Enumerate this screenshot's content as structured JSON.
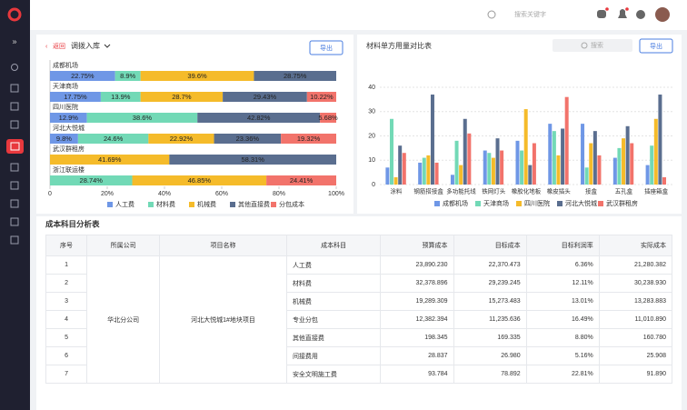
{
  "header": {
    "search_placeholder": "搜索关键字"
  },
  "left_panel": {
    "back": "返回",
    "selector": "调拨入库",
    "export": "导出"
  },
  "right_panel": {
    "title": "材料单方用量对比表",
    "search_placeholder": "搜索",
    "export": "导出"
  },
  "chart_data": [
    {
      "type": "stacked_bar_h",
      "categories": [
        "成都机场",
        "天津商场",
        "四川医院",
        "河北大悦城",
        "武汉群租房",
        "浙江联运楼"
      ],
      "series": [
        {
          "name": "人工费",
          "color": "#6f97e6",
          "values": [
            22.75,
            17.75,
            12.9,
            9.8,
            null,
            null
          ],
          "value_labels": [
            "22.75%",
            "17.75%",
            "12.9%",
            "9.8%",
            null,
            null
          ]
        },
        {
          "name": "材料费",
          "color": "#72d9b6",
          "values": [
            8.9,
            13.9,
            38.6,
            24.6,
            null,
            28.74
          ],
          "value_labels": [
            "8.9%",
            "13.9%",
            "38.6%",
            "24.6%",
            null,
            "28.74%"
          ]
        },
        {
          "name": "机械费",
          "color": "#f5bb2a",
          "values": [
            39.6,
            28.7,
            null,
            22.92,
            41.69,
            46.85
          ],
          "value_labels": [
            "39.6%",
            "28.7%",
            null,
            "22.92%",
            "41.69%",
            "46.85%"
          ]
        },
        {
          "name": "其他直接费",
          "color": "#5a6e8f",
          "values": [
            28.75,
            29.43,
            42.82,
            23.36,
            58.31,
            null
          ],
          "value_labels": [
            "28.75%",
            "29.43%",
            "42.82%",
            "23.36%",
            "58.31%",
            null
          ]
        },
        {
          "name": "分包成本",
          "color": "#f2736b",
          "values": [
            null,
            10.22,
            5.68,
            19.32,
            null,
            24.41
          ],
          "value_labels": [
            null,
            "10.22%",
            "5.68%",
            "19.32%",
            null,
            "24.41%"
          ]
        }
      ],
      "xlim": [
        0,
        100
      ],
      "xticks": [
        {
          "value": 0,
          "label": "0"
        },
        {
          "value": 20,
          "label": "20%"
        },
        {
          "value": 40,
          "label": "40%"
        },
        {
          "value": 60,
          "label": "60%"
        },
        {
          "value": 80,
          "label": "80%"
        },
        {
          "value": 100,
          "label": "100%"
        }
      ],
      "grid": false,
      "legend": "bottom"
    },
    {
      "type": "bar",
      "categories": [
        "涂料",
        "钢筋搭接盒",
        "多功能托线",
        "铁网灯头",
        "橡胶化地板",
        "橡皮插头",
        "接盒",
        "五孔盒",
        "插座箱盒"
      ],
      "series": [
        {
          "name": "成都机场",
          "color": "#6f97e6",
          "values": [
            7,
            9,
            4,
            14,
            18,
            25,
            25,
            11,
            8
          ]
        },
        {
          "name": "天津商场",
          "color": "#72d9b6",
          "values": [
            27,
            11,
            18,
            13,
            14,
            22,
            7,
            15,
            16
          ]
        },
        {
          "name": "四川医院",
          "color": "#f5bb2a",
          "values": [
            3,
            12,
            8,
            11,
            31,
            12,
            17,
            19,
            27
          ]
        },
        {
          "name": "河北大悦城",
          "color": "#5a6e8f",
          "values": [
            16,
            37,
            27,
            19,
            8,
            23,
            22,
            24,
            37
          ]
        },
        {
          "name": "武汉群租房",
          "color": "#f2736b",
          "values": [
            13,
            9,
            21,
            14,
            17,
            36,
            12,
            17,
            3
          ]
        }
      ],
      "ylim": [
        0,
        40
      ],
      "yticks": [
        0,
        10,
        20,
        30,
        40
      ],
      "grid": true,
      "legend": "bottom"
    }
  ],
  "table": {
    "title": "成本科目分析表",
    "columns": [
      "序号",
      "所属公司",
      "项目名称",
      "成本科目",
      "预算成本",
      "目标成本",
      "目标利润率",
      "实际成本"
    ],
    "company": "华北分公司",
    "project": "河北大悦城1#地块项目",
    "rows": [
      [
        "1",
        "人工费",
        "23,890.230",
        "22,370.473",
        "6.36%",
        "21,280.382"
      ],
      [
        "2",
        "材料费",
        "32,378.896",
        "29,239.245",
        "12.11%",
        "30,238.930"
      ],
      [
        "3",
        "机械费",
        "19,289.309",
        "15,273.483",
        "13.01%",
        "13,283.883"
      ],
      [
        "4",
        "专业分包",
        "12,382.394",
        "11,235.636",
        "16.49%",
        "11,010.890"
      ],
      [
        "5",
        "其他直接费",
        "198.345",
        "169.335",
        "8.80%",
        "160.780"
      ],
      [
        "6",
        "间接费用",
        "28.837",
        "26.980",
        "5.16%",
        "25.908"
      ],
      [
        "7",
        "安全文明施工费",
        "93.784",
        "78.892",
        "22.81%",
        "91.890"
      ]
    ]
  }
}
